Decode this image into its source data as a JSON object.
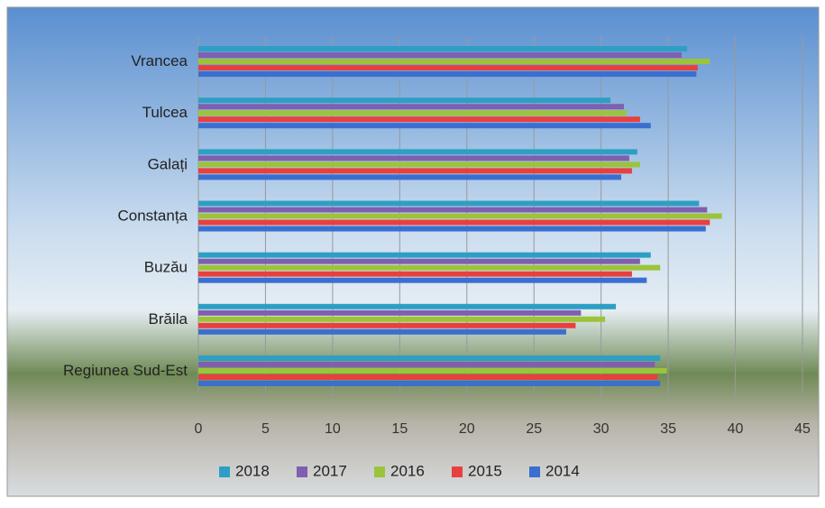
{
  "chart_data": {
    "type": "bar",
    "orientation": "horizontal",
    "categories": [
      "Vrancea",
      "Tulcea",
      "Galați",
      "Constanța",
      "Buzău",
      "Brăila",
      "Regiunea Sud-Est"
    ],
    "series": [
      {
        "name": "2018",
        "color": "#2e9fc4",
        "values": [
          36.4,
          30.7,
          32.7,
          37.3,
          33.7,
          31.1,
          34.4
        ]
      },
      {
        "name": "2017",
        "color": "#7f5fb0",
        "values": [
          36.0,
          31.7,
          32.1,
          37.9,
          32.9,
          28.5,
          34.0
        ]
      },
      {
        "name": "2016",
        "color": "#9bc43a",
        "values": [
          38.1,
          31.9,
          32.9,
          39.0,
          34.4,
          30.3,
          34.9
        ]
      },
      {
        "name": "2015",
        "color": "#e8403f",
        "values": [
          37.2,
          32.9,
          32.3,
          38.1,
          32.3,
          28.1,
          34.2
        ]
      },
      {
        "name": "2014",
        "color": "#3a6fd0",
        "values": [
          37.1,
          33.7,
          31.5,
          37.8,
          33.4,
          27.4,
          34.4
        ]
      }
    ],
    "xlim": [
      0,
      45
    ],
    "xticks": [
      0,
      5,
      10,
      15,
      20,
      25,
      30,
      35,
      40,
      45
    ],
    "grid": true,
    "legend": "bottom"
  }
}
